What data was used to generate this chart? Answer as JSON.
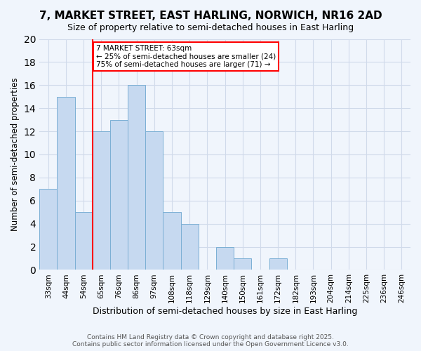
{
  "title1": "7, MARKET STREET, EAST HARLING, NORWICH, NR16 2AD",
  "title2": "Size of property relative to semi-detached houses in East Harling",
  "xlabel": "Distribution of semi-detached houses by size in East Harling",
  "ylabel": "Number of semi-detached properties",
  "bins": [
    "33sqm",
    "44sqm",
    "54sqm",
    "65sqm",
    "76sqm",
    "86sqm",
    "97sqm",
    "108sqm",
    "118sqm",
    "129sqm",
    "140sqm",
    "150sqm",
    "161sqm",
    "172sqm",
    "182sqm",
    "193sqm",
    "204sqm",
    "214sqm",
    "225sqm",
    "236sqm",
    "246sqm"
  ],
  "values": [
    7,
    15,
    5,
    12,
    13,
    16,
    12,
    5,
    4,
    0,
    2,
    1,
    0,
    1,
    0,
    0,
    0,
    0,
    0,
    0,
    0
  ],
  "bar_color": "#c6d9f0",
  "bar_edge_color": "#7bafd4",
  "vline_x_index": 3,
  "vline_color": "red",
  "annotation_title": "7 MARKET STREET: 63sqm",
  "annotation_line1": "← 25% of semi-detached houses are smaller (24)",
  "annotation_line2": "75% of semi-detached houses are larger (71) →",
  "annotation_box_color": "white",
  "annotation_box_edge": "red",
  "ylim": [
    0,
    20
  ],
  "yticks": [
    0,
    2,
    4,
    6,
    8,
    10,
    12,
    14,
    16,
    18,
    20
  ],
  "footnote": "Contains HM Land Registry data © Crown copyright and database right 2025.\nContains public sector information licensed under the Open Government Licence v3.0.",
  "bg_color": "#f0f5fc",
  "grid_color": "#d0daea"
}
